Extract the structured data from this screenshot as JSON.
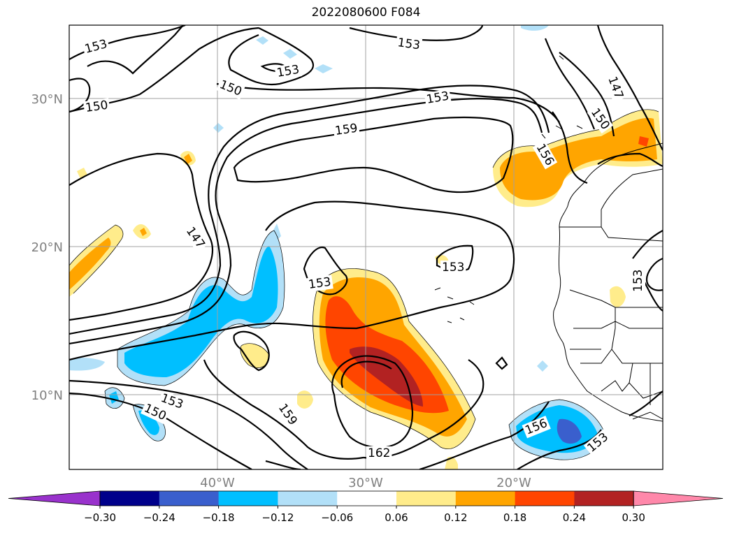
{
  "title": "2022080600 F084",
  "lat_labels": [
    "30°N",
    "20°N",
    "10°N"
  ],
  "lon_labels": [
    "40°W",
    "30°W",
    "20°W"
  ],
  "contour_labels": [
    "153",
    "150",
    "153",
    "153",
    "150",
    "153",
    "159",
    "147",
    "150",
    "156",
    "147",
    "153",
    "153",
    "162",
    "159",
    "153",
    "150",
    "156",
    "153",
    "153"
  ],
  "colorbar": {
    "ticks": [
      "−0.30",
      "−0.24",
      "−0.18",
      "−0.12",
      "−0.06",
      "0.06",
      "0.12",
      "0.18",
      "0.24",
      "0.30"
    ],
    "colors": [
      "#9932cc",
      "#00008b",
      "#3a5fcd",
      "#00bfff",
      "#b2e0f8",
      "#ffffff",
      "#ffec8b",
      "#ffa500",
      "#ff4500",
      "#b22222",
      "#ff88aa"
    ]
  },
  "fill_colors": {
    "light_yellow": "#ffec8b",
    "orange": "#ffa500",
    "red_orange": "#ff4500",
    "dark_red": "#b22222",
    "light_blue": "#b2e0f8",
    "deep_sky_blue": "#00bfff",
    "royal_blue": "#3a5fcd"
  }
}
